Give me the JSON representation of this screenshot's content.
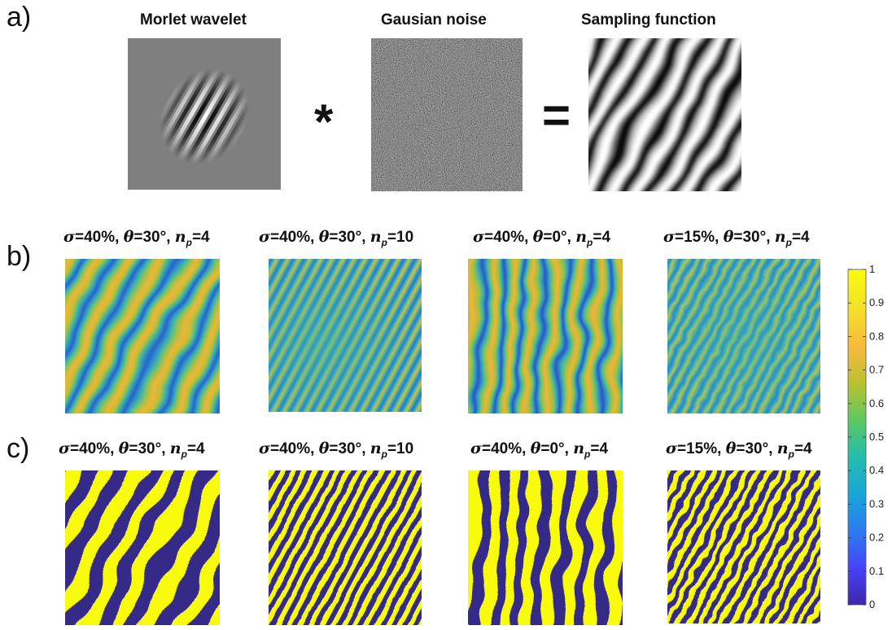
{
  "panel_labels": {
    "a": "a)",
    "b": "b)",
    "c": "c)"
  },
  "row_a": {
    "titles": [
      "Morlet wavelet",
      "Gausian noise",
      "Sampling function"
    ],
    "operators": [
      "*",
      "="
    ]
  },
  "row_b": {
    "titles": [
      {
        "sigma": "σ",
        "sigma_val": "=40%, ",
        "theta": "θ",
        "theta_val": "=30°, ",
        "n": "n",
        "n_sub": "p",
        "n_val": "=4"
      },
      {
        "sigma": "σ",
        "sigma_val": "=40%, ",
        "theta": "θ",
        "theta_val": "=30°, ",
        "n": "n",
        "n_sub": "p",
        "n_val": "=10"
      },
      {
        "sigma": "σ",
        "sigma_val": "=40%, ",
        "theta": "θ",
        "theta_val": "=0°, ",
        "n": "n",
        "n_sub": "p",
        "n_val": "=4"
      },
      {
        "sigma": "σ",
        "sigma_val": "=15%, ",
        "theta": "θ",
        "theta_val": "=30°, ",
        "n": "n",
        "n_sub": "p",
        "n_val": "=4"
      }
    ]
  },
  "row_c": {
    "titles": [
      {
        "sigma": "σ",
        "sigma_val": "=40%, ",
        "theta": "θ",
        "theta_val": "=30°, ",
        "n": "n",
        "n_sub": "p",
        "n_val": "=4"
      },
      {
        "sigma": "σ",
        "sigma_val": "=40%, ",
        "theta": "θ",
        "theta_val": "=30°, ",
        "n": "n",
        "n_sub": "p",
        "n_val": "=10"
      },
      {
        "sigma": "σ",
        "sigma_val": "=40%, ",
        "theta": "θ",
        "theta_val": "=0°, ",
        "n": "n",
        "n_sub": "p",
        "n_val": "=4"
      },
      {
        "sigma": "σ",
        "sigma_val": "=15%, ",
        "theta": "θ",
        "theta_val": "=30°, ",
        "n": "n",
        "n_sub": "p",
        "n_val": "=4"
      }
    ]
  },
  "colorbar": {
    "ticks": [
      "1",
      "0.9",
      "0.8",
      "0.7",
      "0.6",
      "0.5",
      "0.4",
      "0.3",
      "0.2",
      "0.1",
      "0"
    ],
    "colormap": [
      "#3e26a8",
      "#4743f8",
      "#2c7bf0",
      "#1ba5d8",
      "#24bdae",
      "#5cc863",
      "#b8c22f",
      "#f8ba3d",
      "#f5e02a",
      "#f9fb0e"
    ]
  },
  "colors": {
    "binary_dark": "#352a87",
    "binary_light": "#f9fb0e",
    "cont_low": "#3b4bd6",
    "cont_mid": "#3fb6a8",
    "cont_high": "#f2b436"
  }
}
